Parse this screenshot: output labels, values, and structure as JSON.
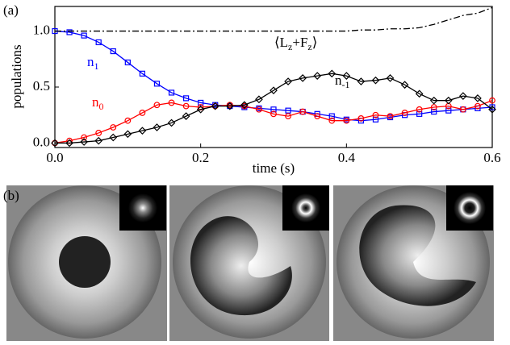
{
  "panel_labels": [
    "(a)",
    "(b)"
  ],
  "chart_data": {
    "type": "line",
    "x_label": "time (s)",
    "y_label": "populations",
    "x": [
      0,
      0.02,
      0.04,
      0.06,
      0.08,
      0.1,
      0.12,
      0.14,
      0.16,
      0.18,
      0.2,
      0.22,
      0.24,
      0.26,
      0.28,
      0.3,
      0.32,
      0.34,
      0.36,
      0.38,
      0.4,
      0.42,
      0.44,
      0.46,
      0.48,
      0.5,
      0.52,
      0.54,
      0.56,
      0.58,
      0.6
    ],
    "xlim": [
      0,
      0.6
    ],
    "ylim": [
      -0.04,
      1.22
    ],
    "xticks": [
      {
        "value": 0,
        "label": "0.0"
      },
      0.2,
      0.4,
      0.6
    ],
    "yticks": [
      {
        "value": 0,
        "label": "0.0"
      },
      0.5,
      {
        "value": 1,
        "label": "1.0"
      }
    ],
    "series": [
      {
        "name": "n",
        "subscript": "1",
        "color": "#0000ff",
        "marker": "square",
        "values": [
          1.0,
          0.99,
          0.96,
          0.9,
          0.82,
          0.72,
          0.62,
          0.53,
          0.45,
          0.4,
          0.36,
          0.34,
          0.33,
          0.32,
          0.31,
          0.3,
          0.29,
          0.28,
          0.26,
          0.24,
          0.21,
          0.2,
          0.21,
          0.23,
          0.25,
          0.26,
          0.28,
          0.29,
          0.3,
          0.31,
          0.32
        ]
      },
      {
        "name": "n",
        "subscript": "0",
        "color": "#ff0000",
        "marker": "circle",
        "values": [
          0,
          0.02,
          0.05,
          0.09,
          0.14,
          0.2,
          0.27,
          0.34,
          0.36,
          0.33,
          0.32,
          0.33,
          0.34,
          0.33,
          0.3,
          0.26,
          0.24,
          0.28,
          0.24,
          0.2,
          0.2,
          0.22,
          0.25,
          0.24,
          0.27,
          0.3,
          0.32,
          0.33,
          0.3,
          0.33,
          0.38
        ]
      },
      {
        "name": "n",
        "subscript": "-1",
        "color": "#000000",
        "marker": "diamond",
        "values": [
          0,
          0,
          0.01,
          0.02,
          0.05,
          0.08,
          0.11,
          0.14,
          0.18,
          0.24,
          0.3,
          0.33,
          0.33,
          0.34,
          0.39,
          0.47,
          0.55,
          0.58,
          0.6,
          0.62,
          0.6,
          0.55,
          0.56,
          0.58,
          0.52,
          0.44,
          0.38,
          0.38,
          0.42,
          0.4,
          0.3
        ]
      },
      {
        "name": "⟨L",
        "subscript": "z",
        "name2": "+F",
        "subscript2": "z",
        "name3": "⟩",
        "color": "#000000",
        "marker": "dashdot",
        "values": [
          1,
          1,
          1,
          1,
          1,
          1,
          1,
          1,
          1,
          1,
          1,
          1,
          1,
          1,
          1,
          1,
          1,
          1,
          1,
          1,
          1,
          1.01,
          1.01,
          1.02,
          1.02,
          1.03,
          1.06,
          1.1,
          1.14,
          1.16,
          1.21
        ]
      }
    ]
  }
}
